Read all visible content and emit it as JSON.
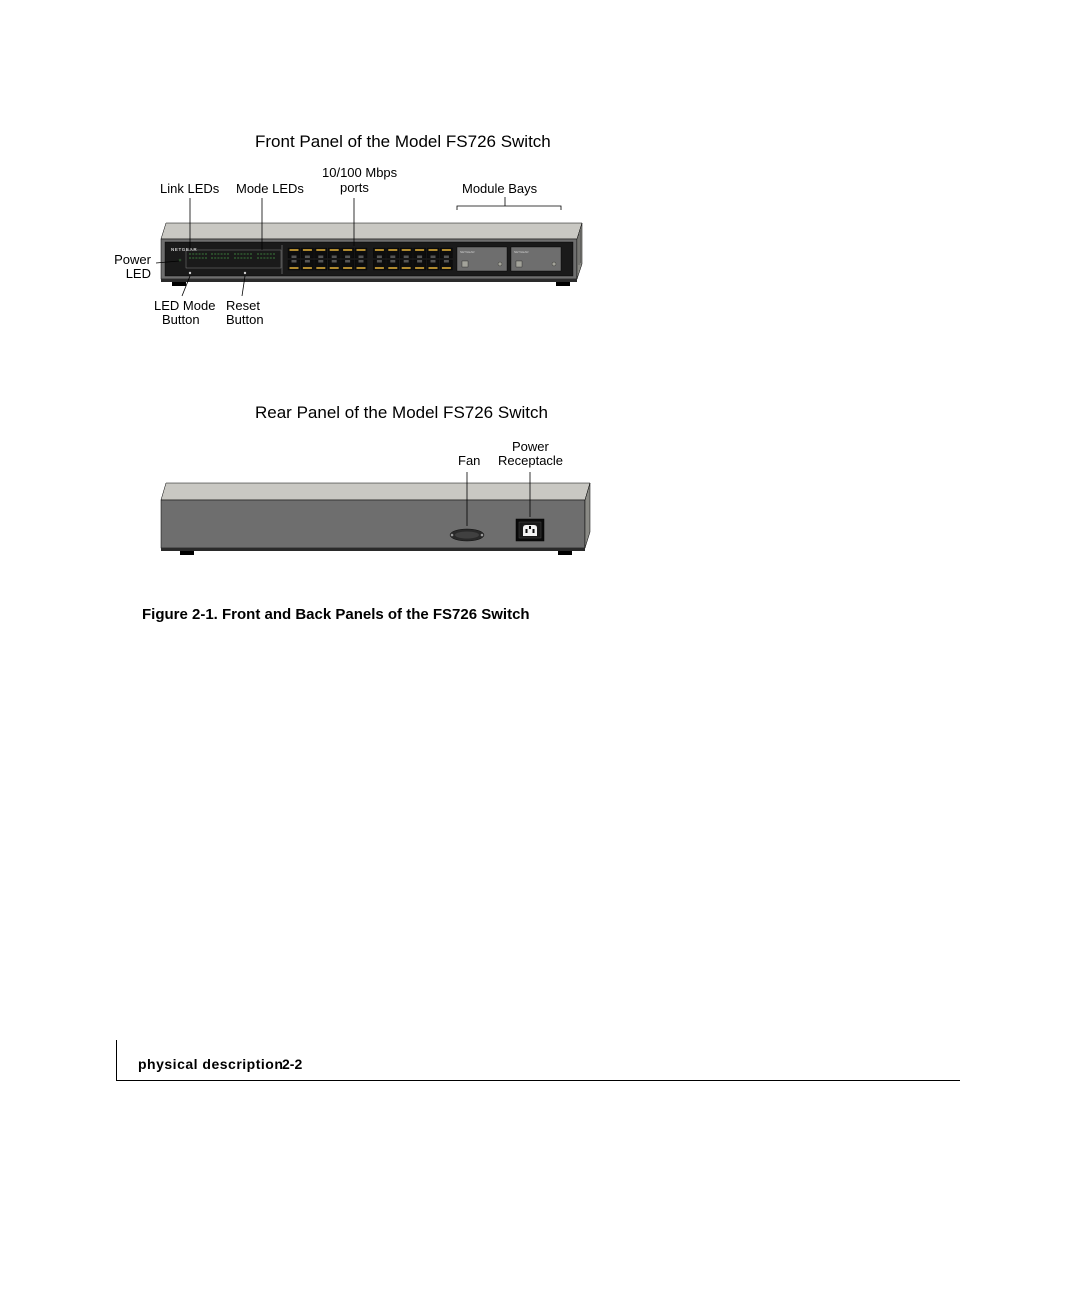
{
  "titles": {
    "front": "Front Panel of the Model FS726 Switch",
    "rear": "Rear Panel of the Model FS726 Switch"
  },
  "caption": "Figure 2-1. Front and Back Panels of the FS726 Switch",
  "footer": {
    "section": "physical description",
    "page": "2-2"
  },
  "front_labels": {
    "link_leds": "Link LEDs",
    "mode_leds": "Mode LEDs",
    "ports_l1": "10/100 Mbps",
    "ports_l2": "ports",
    "module_bays": "Module Bays",
    "power_led_l1": "Power",
    "power_led_l2": "LED",
    "ledmode_l1": "LED Mode",
    "ledmode_l2": "Button",
    "reset_l1": "Reset",
    "reset_l2": "Button"
  },
  "rear_labels": {
    "fan": "Fan",
    "receptacle_l1": "Power",
    "receptacle_l2": "Receptacle"
  },
  "diagram": {
    "colors": {
      "top_plate": "#c9c8c3",
      "front_plate": "#6e6e6e",
      "dark_panel": "#1a1a1a",
      "tab": "#555555",
      "led_off": "#2a4a2a",
      "netgear_text": "#bfbfbf",
      "module_hole": "#a3a39a",
      "outline": "#000000"
    },
    "front": {
      "brand": "NETGEAR",
      "port_count": 24,
      "port_rows": 2,
      "port_cols": 12,
      "led_grid": {
        "rows": 2,
        "blocks": 4,
        "cols_per_block": 6
      },
      "module_bays": 2
    }
  }
}
